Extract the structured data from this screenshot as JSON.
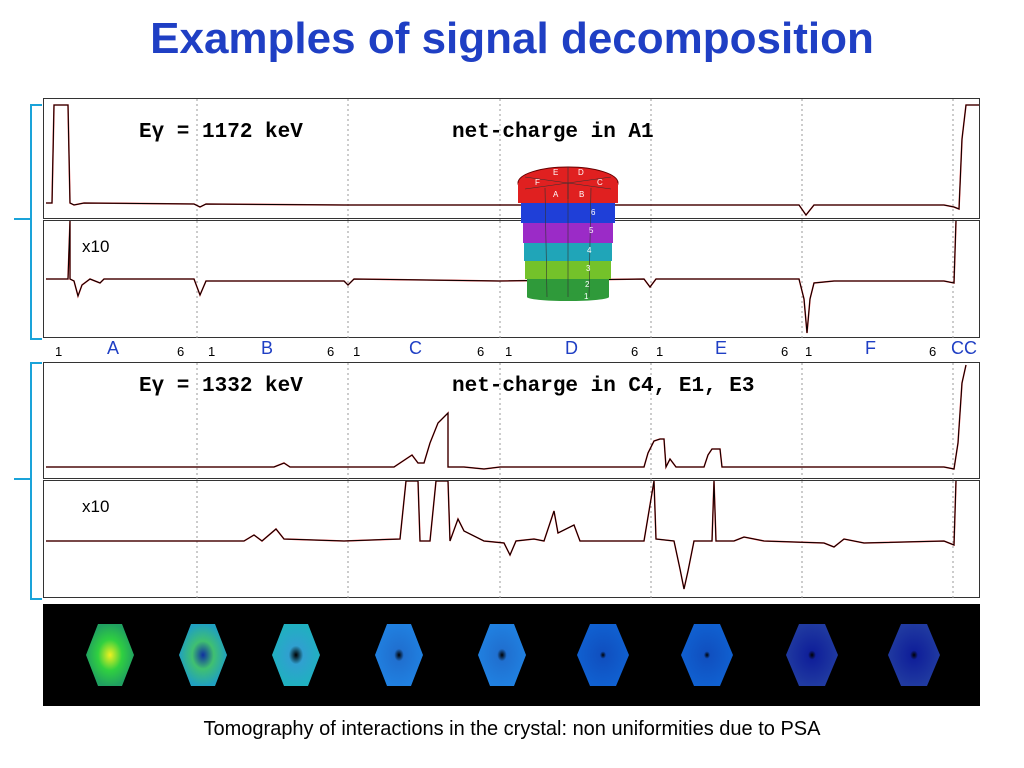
{
  "title": "Examples of signal decomposition",
  "panel1": {
    "energy_label": "Eγ = 1172 keV",
    "charge_label": "net-charge in A1",
    "x10_label": "x10"
  },
  "panel2": {
    "energy_label": "Eγ = 1332 keV",
    "charge_label": "net-charge in C4, E1, E3",
    "x10_label": "x10"
  },
  "segments": [
    {
      "start": "1",
      "label": "A",
      "end": "6"
    },
    {
      "start": "1",
      "label": "B",
      "end": "6"
    },
    {
      "start": "1",
      "label": "C",
      "end": "6"
    },
    {
      "start": "1",
      "label": "D",
      "end": "6"
    },
    {
      "start": "1",
      "label": "E",
      "end": "6"
    },
    {
      "start": "1",
      "label": "F",
      "end": "6"
    }
  ],
  "core_label": "CC",
  "crystal": {
    "sector_letters": [
      "F",
      "E",
      "D",
      "C",
      "B",
      "A"
    ],
    "ring_numbers": [
      "6",
      "5",
      "4",
      "3",
      "2",
      "1"
    ],
    "ring_colors": [
      "#e02020",
      "#1f3fd8",
      "#9b2bc7",
      "#20a5b8",
      "#74c22a",
      "#2f9a3a"
    ]
  },
  "caption": "Tomography of interactions in the crystal: non uniformities due to PSA",
  "colors": {
    "title": "#1f3fc4",
    "segment_label": "#1f3fc4",
    "bracket": "#1aa3d9",
    "trace_fit": "#e02020",
    "trace_data": "#000000"
  }
}
